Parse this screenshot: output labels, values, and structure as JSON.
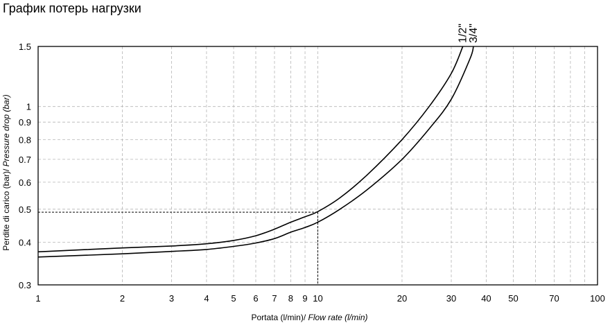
{
  "page": {
    "title": "График потерь нагрузки"
  },
  "chart_data": {
    "type": "line",
    "title": "График потерь нагрузки",
    "x_scale": "log",
    "y_scale": "log",
    "xlim": [
      1,
      100
    ],
    "ylim": [
      0.3,
      1.5
    ],
    "grid": true,
    "xlabel_main": "Portata (l/min)/ ",
    "xlabel_italic": "Flow rate (l/min)",
    "ylabel_main": "Perdite di carico (bar)/ ",
    "ylabel_italic": "Pressure drop (bar)",
    "x_ticks": [
      1,
      2,
      3,
      4,
      5,
      6,
      7,
      8,
      9,
      10,
      20,
      30,
      40,
      50,
      70,
      100
    ],
    "x_tick_labels": [
      "1",
      "2",
      "3",
      "4",
      "5",
      "6",
      "7",
      "8",
      "9",
      "10",
      "20",
      "30",
      "40",
      "50",
      "70",
      "100"
    ],
    "y_ticks": [
      0.3,
      0.4,
      0.5,
      0.6,
      0.7,
      0.8,
      0.9,
      1,
      1.5
    ],
    "y_tick_labels": [
      "0.3",
      "0.4",
      "0.5",
      "0.6",
      "0.7",
      "0.8",
      "0.9",
      "1",
      "1.5"
    ],
    "grid_x": [
      2,
      3,
      4,
      5,
      6,
      7,
      8,
      9,
      10,
      20,
      30,
      40,
      50,
      60,
      70,
      80,
      90
    ],
    "grid_y": [
      0.4,
      0.5,
      0.6,
      0.7,
      0.8,
      0.9,
      1
    ],
    "series": [
      {
        "name": "1/2\"",
        "x": [
          1,
          2,
          3,
          4,
          5,
          6,
          7,
          8,
          9,
          10,
          12,
          15,
          20,
          25,
          30,
          33
        ],
        "y": [
          0.375,
          0.385,
          0.39,
          0.396,
          0.405,
          0.418,
          0.437,
          0.458,
          0.475,
          0.492,
          0.54,
          0.63,
          0.8,
          1.0,
          1.25,
          1.5
        ]
      },
      {
        "name": "3/4\"",
        "x": [
          1,
          2,
          3,
          4,
          5,
          6,
          7,
          8,
          9,
          10,
          12,
          15,
          20,
          25,
          30,
          35,
          36
        ],
        "y": [
          0.362,
          0.37,
          0.376,
          0.381,
          0.389,
          0.398,
          0.41,
          0.428,
          0.442,
          0.458,
          0.5,
          0.57,
          0.7,
          0.86,
          1.05,
          1.38,
          1.5
        ]
      }
    ],
    "reference_point": {
      "x": 10,
      "y": 0.49
    }
  }
}
